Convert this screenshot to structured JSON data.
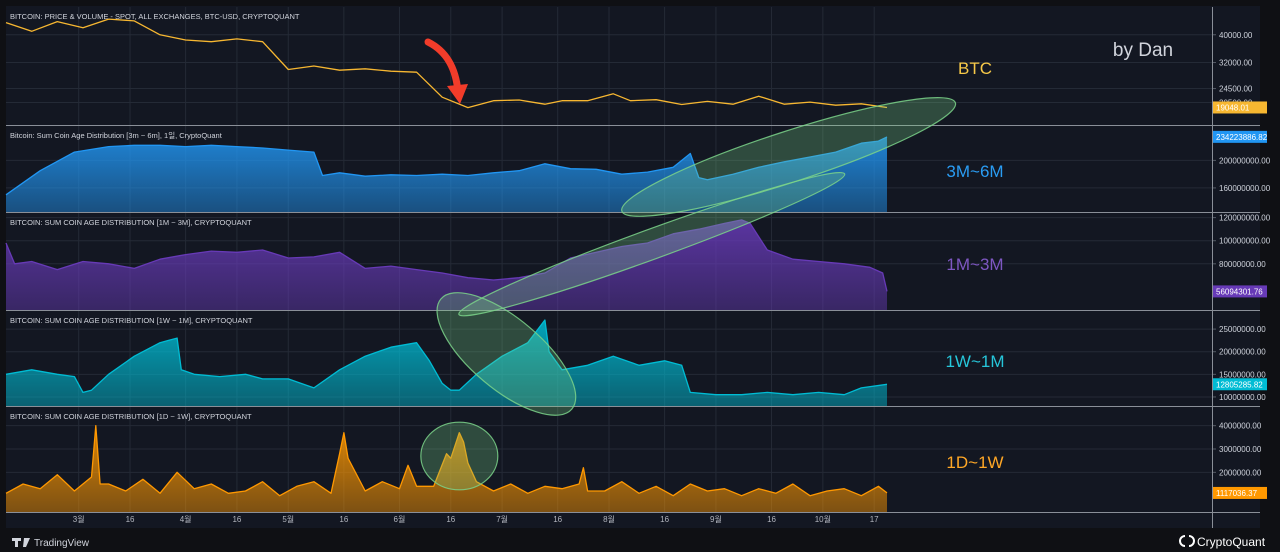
{
  "colors": {
    "background": "#131722",
    "page": "#0f1014",
    "grid": "#242a36",
    "btc": "#f7b731",
    "c3m6m": "#2196f3",
    "c1m3m": "#673ab7",
    "c1w1m": "#00bcd4",
    "c1d1w": "#ff9800",
    "highlight": "#7bd389",
    "arrow": "#f23c2a",
    "axis_text": "#cfd3dc",
    "x_text": "#b2b5be"
  },
  "watermark": "by Dan",
  "footer": {
    "left": "TradingView",
    "right": "CryptoQuant"
  },
  "chart_data": [
    {
      "id": "btc",
      "type": "line",
      "title": "BITCOIN: PRICE & VOLUME - SPOT, ALL EXCHANGES, BTC-USD, CRYPTOQUANT",
      "label": "BTC",
      "ylim": [
        14000,
        48000
      ],
      "yticks": [
        40000,
        32000,
        24500,
        20500
      ],
      "ytick_labels": [
        "40000.00",
        "32000.00",
        "24500.00",
        "20500.00"
      ],
      "last_value": 19048.01,
      "last_label": "19048.01",
      "x": [
        0,
        6,
        12,
        18,
        24,
        30,
        36,
        42,
        48,
        54,
        60,
        66,
        72,
        78,
        84,
        90,
        96,
        102,
        108,
        114,
        120,
        124,
        126,
        130,
        136,
        142,
        146,
        152,
        158,
        164,
        170,
        176,
        182,
        188,
        194,
        200,
        206
      ],
      "y": [
        43500,
        41000,
        43800,
        42000,
        44500,
        44000,
        40000,
        38500,
        38000,
        38800,
        38000,
        30000,
        31000,
        29800,
        30200,
        29500,
        29200,
        22000,
        19000,
        21000,
        21200,
        20400,
        20000,
        21000,
        21000,
        23000,
        21000,
        21300,
        19900,
        20800,
        20000,
        22300,
        20000,
        20600,
        19700,
        20100,
        19048
      ]
    },
    {
      "id": "c3m6m",
      "type": "area",
      "title": "Bitcoin: Sum Coin Age Distribution [3m ~ 6m], 1일, CryptoQuant",
      "label": "3M~6M",
      "ylim": [
        125000000,
        250000000
      ],
      "yticks": [
        200000000,
        160000000
      ],
      "ytick_labels": [
        "200000000.00",
        "160000000.00"
      ],
      "last_value": 234223886.82,
      "last_label": "234223886.82",
      "x": [
        0,
        8,
        16,
        24,
        30,
        36,
        42,
        48,
        54,
        60,
        66,
        72,
        74,
        78,
        84,
        90,
        96,
        102,
        108,
        114,
        120,
        126,
        132,
        138,
        144,
        150,
        156,
        160,
        162,
        164,
        170,
        176,
        182,
        188,
        194,
        200,
        204,
        206
      ],
      "y": [
        150000000,
        185000000,
        212000000,
        220000000,
        222000000,
        222000000,
        220000000,
        222000000,
        220000000,
        218000000,
        215000000,
        212000000,
        178000000,
        182000000,
        177000000,
        179000000,
        178000000,
        180000000,
        178000000,
        182000000,
        185000000,
        195000000,
        188000000,
        187000000,
        180000000,
        183000000,
        190000000,
        210000000,
        175000000,
        172000000,
        180000000,
        190000000,
        198000000,
        205000000,
        212000000,
        225000000,
        228000000,
        234223886.82
      ]
    },
    {
      "id": "c1m3m",
      "type": "area",
      "title": "BITCOIN: SUM COIN AGE DISTRIBUTION [1M ~ 3M], CRYPTOQUANT",
      "label": "1M~3M",
      "ylim": [
        40000000,
        124000000
      ],
      "yticks": [
        120000000,
        100000000,
        80000000
      ],
      "ytick_labels": [
        "120000000.00",
        "100000000.00",
        "80000000.00"
      ],
      "last_value": 56094301.76,
      "last_label": "56094301.76",
      "x": [
        0,
        2,
        6,
        12,
        18,
        24,
        30,
        36,
        42,
        48,
        54,
        60,
        66,
        72,
        78,
        84,
        90,
        96,
        102,
        108,
        114,
        120,
        126,
        132,
        138,
        144,
        150,
        156,
        162,
        168,
        172,
        174,
        178,
        184,
        190,
        196,
        202,
        205,
        206
      ],
      "y": [
        98000000,
        80000000,
        82000000,
        75000000,
        82000000,
        80000000,
        76000000,
        84000000,
        88000000,
        91000000,
        90000000,
        92000000,
        85000000,
        86000000,
        90000000,
        76000000,
        78000000,
        75000000,
        72000000,
        68000000,
        66000000,
        68000000,
        72000000,
        85000000,
        90000000,
        95000000,
        98000000,
        106000000,
        110000000,
        115000000,
        118000000,
        115000000,
        92000000,
        84000000,
        82000000,
        80000000,
        77000000,
        72000000,
        56094301.76
      ]
    },
    {
      "id": "c1w1m",
      "type": "area",
      "title": "BITCOIN: SUM COIN AGE DISTRIBUTION [1W ~ 1M], CRYPTOQUANT",
      "label": "1W~1M",
      "ylim": [
        8000000,
        29000000
      ],
      "yticks": [
        25000000,
        20000000,
        15000000,
        10000000
      ],
      "ytick_labels": [
        "25000000.00",
        "20000000.00",
        "15000000.00",
        "10000000.00"
      ],
      "last_value": 12805285.82,
      "last_label": "12805285.82",
      "x": [
        0,
        6,
        12,
        16,
        18,
        20,
        24,
        30,
        36,
        38,
        40,
        41,
        44,
        50,
        56,
        60,
        66,
        72,
        78,
        84,
        90,
        96,
        99,
        102,
        104,
        106,
        110,
        116,
        122,
        126,
        127,
        130,
        136,
        142,
        148,
        154,
        158,
        160,
        166,
        172,
        178,
        184,
        190,
        196,
        200,
        206
      ],
      "y": [
        15000000,
        16000000,
        15000000,
        14500000,
        11000000,
        11500000,
        15000000,
        19000000,
        22000000,
        22500000,
        23000000,
        16000000,
        15000000,
        14500000,
        15000000,
        14000000,
        14000000,
        12000000,
        16000000,
        19000000,
        21000000,
        22000000,
        18000000,
        13000000,
        11500000,
        11500000,
        15000000,
        19000000,
        22000000,
        27000000,
        20000000,
        16000000,
        17000000,
        19000000,
        17000000,
        18000000,
        17000000,
        11000000,
        10500000,
        10500000,
        11000000,
        10500000,
        11000000,
        10500000,
        12000000,
        12805285.82
      ]
    },
    {
      "id": "c1d1w",
      "type": "area",
      "title": "BITCOIN: SUM COIN AGE DISTRIBUTION [1D ~ 1W], CRYPTOQUANT",
      "label": "1D~1W",
      "ylim": [
        300000,
        4800000
      ],
      "yticks": [
        4000000,
        3000000,
        2000000
      ],
      "ytick_labels": [
        "4000000.00",
        "3000000.00",
        "2000000.00"
      ],
      "last_value": 1117036.37,
      "last_label": "1117036.37",
      "x": [
        0,
        4,
        8,
        12,
        16,
        20,
        21,
        22,
        24,
        28,
        32,
        36,
        40,
        44,
        48,
        52,
        56,
        60,
        64,
        68,
        72,
        76,
        78,
        79,
        80,
        84,
        88,
        92,
        94,
        96,
        100,
        103,
        104,
        106,
        107,
        108,
        110,
        114,
        118,
        122,
        126,
        130,
        134,
        135,
        136,
        140,
        144,
        148,
        152,
        156,
        160,
        164,
        168,
        172,
        176,
        180,
        184,
        188,
        192,
        196,
        200,
        204,
        206
      ],
      "y": [
        1100000,
        1500000,
        1300000,
        1900000,
        1200000,
        1800000,
        4000000,
        1500000,
        1500000,
        1200000,
        1700000,
        1100000,
        2000000,
        1300000,
        1500000,
        1100000,
        1200000,
        1600000,
        1000000,
        1400000,
        1600000,
        1100000,
        2800000,
        3700000,
        2600000,
        1200000,
        1600000,
        1300000,
        2300000,
        1400000,
        1400000,
        2800000,
        2600000,
        3700000,
        3300000,
        2400000,
        1600000,
        1200000,
        1500000,
        1100000,
        1400000,
        1300000,
        1500000,
        2200000,
        1200000,
        1200000,
        1600000,
        1100000,
        1400000,
        1000000,
        1500000,
        1200000,
        1300000,
        1000000,
        1300000,
        1100000,
        1500000,
        1000000,
        1200000,
        1300000,
        1000000,
        1400000,
        1117036.37
      ]
    }
  ],
  "x_axis": {
    "range": [
      0,
      206
    ],
    "ticks": [
      {
        "x": 17,
        "label": "3월"
      },
      {
        "x": 29,
        "label": "16"
      },
      {
        "x": 42,
        "label": "4월"
      },
      {
        "x": 54,
        "label": "16"
      },
      {
        "x": 66,
        "label": "5월"
      },
      {
        "x": 79,
        "label": "16"
      },
      {
        "x": 92,
        "label": "6월"
      },
      {
        "x": 104,
        "label": "16"
      },
      {
        "x": 116,
        "label": "7월"
      },
      {
        "x": 129,
        "label": "16"
      },
      {
        "x": 141,
        "label": "8월"
      },
      {
        "x": 154,
        "label": "16"
      },
      {
        "x": 166,
        "label": "9월"
      },
      {
        "x": 179,
        "label": "16"
      },
      {
        "x": 191,
        "label": "10월"
      },
      {
        "x": 203,
        "label": "17"
      }
    ]
  },
  "highlights": [
    {
      "panel": "c3m6m",
      "cx": 183,
      "cy": 205000000,
      "rx": 41,
      "ry": 37000000,
      "rot": -18
    },
    {
      "panel": "c1m3m",
      "cx": 151,
      "cy": 97000000,
      "rx": 48,
      "ry": 13000000,
      "rot": -20
    },
    {
      "panel": "c1w1m",
      "cx": 117,
      "cy": 19500000,
      "rx": 20,
      "ry": 7800000,
      "rot": 40
    },
    {
      "panel": "c1d1w",
      "cx": 106,
      "cy": 2700000,
      "rx": 9,
      "ry": 1450000,
      "rot": 0
    }
  ]
}
